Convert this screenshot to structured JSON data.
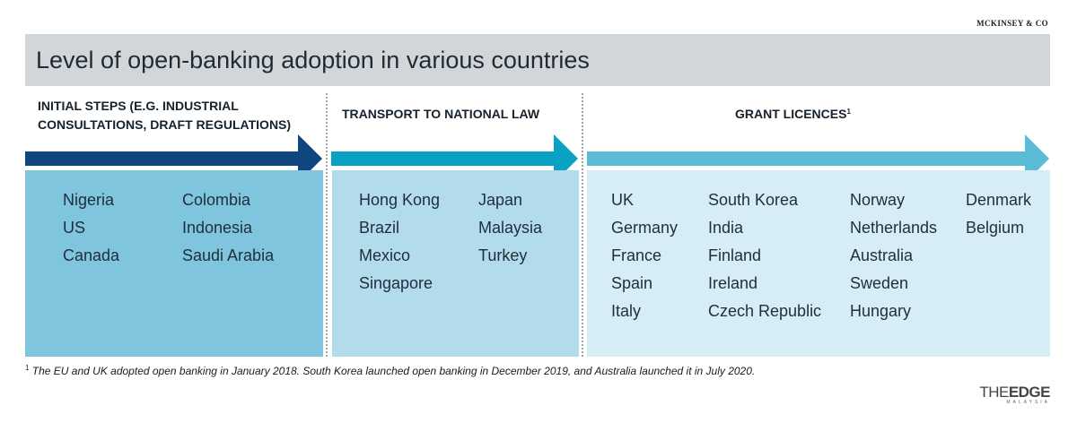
{
  "source": "MCKINSEY & CO",
  "title": "Level of open-banking adoption in various countries",
  "stages": [
    {
      "label_lines": [
        "INITIAL STEPS (E.G. INDUSTRIAL",
        "CONSULTATIONS, DRAFT REGULATIONS)"
      ],
      "marker": "",
      "arrow_color": "#0f4680",
      "panel_color": "#7ec5dd",
      "columns": [
        [
          "Nigeria",
          "US",
          "Canada"
        ],
        [
          "Colombia",
          "Indonesia",
          "Saudi Arabia"
        ]
      ]
    },
    {
      "label_lines": [
        "TRANSPORT TO NATIONAL LAW"
      ],
      "marker": "",
      "arrow_color": "#0aa2c2",
      "panel_color": "#b2dcec",
      "columns": [
        [
          "Hong Kong",
          "Brazil",
          "Mexico",
          "Singapore"
        ],
        [
          "Japan",
          "Malaysia",
          "Turkey"
        ]
      ]
    },
    {
      "label_lines": [
        "GRANT LICENCES"
      ],
      "marker": "1",
      "arrow_color": "#5cbcd8",
      "panel_color": "#d7edf5",
      "columns": [
        [
          "UK",
          "Germany",
          "France",
          "Spain",
          "Italy"
        ],
        [
          "South Korea",
          "India",
          "Finland",
          "Ireland",
          "Czech Republic"
        ],
        [
          "Norway",
          "Netherlands",
          "Australia",
          "Sweden",
          "Hungary"
        ],
        [
          "Denmark",
          "Belgium"
        ]
      ]
    }
  ],
  "footnote": {
    "marker": "1",
    "text": " The EU and UK adopted open banking in January 2018. South Korea launched open banking in December 2019, and Australia launched it in July 2020."
  },
  "logo": {
    "the": "THE",
    "edge": "EDGE",
    "sub": "MALAYSIA"
  }
}
